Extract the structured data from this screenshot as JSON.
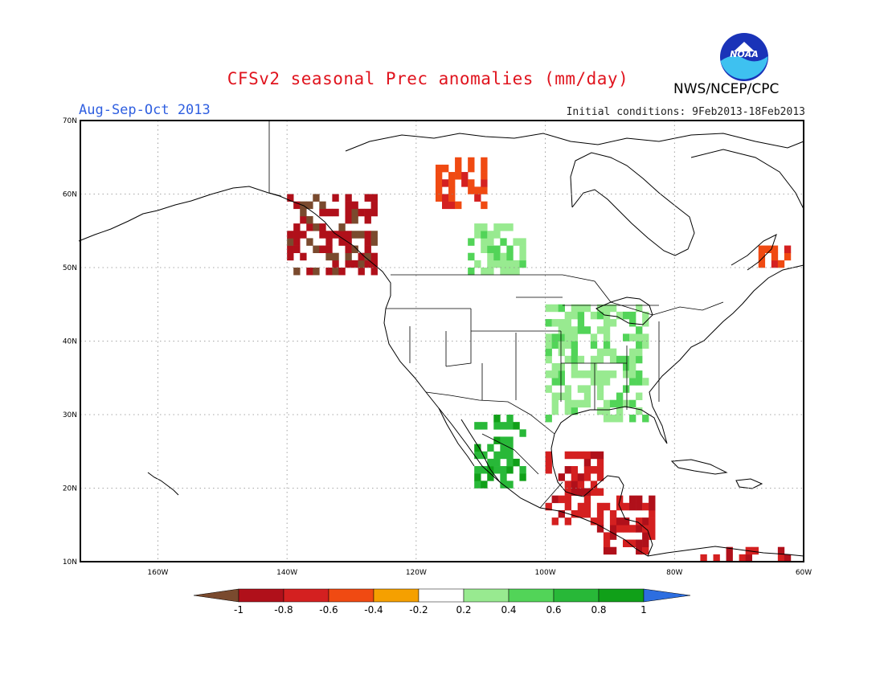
{
  "header": {
    "title": "CFSv2 seasonal Prec anomalies (mm/day)",
    "period": "Aug-Sep-Oct 2013",
    "initial_conditions": "Initial conditions: 9Feb2013-18Feb2013",
    "agency": "NWS/NCEP/CPC",
    "logo_text": "NOAA"
  },
  "map": {
    "lon_range": [
      -172,
      -60
    ],
    "lat_range": [
      10,
      70
    ],
    "lon_ticks": [
      {
        "lon": -160,
        "label": "160W"
      },
      {
        "lon": -140,
        "label": "140W"
      },
      {
        "lon": -120,
        "label": "120W"
      },
      {
        "lon": -100,
        "label": "100W"
      },
      {
        "lon": -80,
        "label": "80W"
      },
      {
        "lon": -60,
        "label": "60W"
      }
    ],
    "lat_ticks": [
      {
        "lat": 70,
        "label": "70N"
      },
      {
        "lat": 60,
        "label": "60N"
      },
      {
        "lat": 50,
        "label": "50N"
      },
      {
        "lat": 40,
        "label": "40N"
      },
      {
        "lat": 30,
        "label": "30N"
      },
      {
        "lat": 20,
        "label": "20N"
      },
      {
        "lat": 10,
        "label": "10N"
      }
    ]
  },
  "legend": {
    "labels": [
      "-1",
      "-0.8",
      "-0.6",
      "-0.4",
      "-0.2",
      "0.2",
      "0.4",
      "0.6",
      "0.8",
      "1"
    ],
    "colors": [
      "#7a4a2e",
      "#b0101a",
      "#d42020",
      "#f04a12",
      "#f5a000",
      "#ffffff",
      "#98ea90",
      "#52d458",
      "#28b838",
      "#10a018",
      "#2d6ee0"
    ]
  },
  "colors": {
    "title": "#e0141e",
    "period": "#2f5fe0",
    "logo_blue": "#1a33b8",
    "logo_cyan": "#3ec1f0"
  },
  "anomaly_regions": [
    {
      "name": "Alaska panhandle / British Columbia coast",
      "lon": [
        -140,
        -126
      ],
      "lat": [
        49,
        60
      ],
      "level": -0.8
    },
    {
      "name": "Northern Canada",
      "lon": [
        -117,
        -109
      ],
      "lat": [
        58,
        65
      ],
      "level": -0.4
    },
    {
      "name": "Western Canada interior",
      "lon": [
        -112,
        -103
      ],
      "lat": [
        49,
        56
      ],
      "level": 0.3
    },
    {
      "name": "Eastern Canada / Labrador",
      "lon": [
        -67,
        -62
      ],
      "lat": [
        50,
        53
      ],
      "level": -0.4
    },
    {
      "name": "US Midwest and South",
      "lon": [
        -100,
        -84
      ],
      "lat": [
        29,
        45
      ],
      "level": 0.3
    },
    {
      "name": "Western Mexico",
      "lon": [
        -111,
        -103
      ],
      "lat": [
        20,
        30
      ],
      "level": 0.6
    },
    {
      "name": "Southern Mexico",
      "lon": [
        -100,
        -91
      ],
      "lat": [
        15,
        25
      ],
      "level": -0.7
    },
    {
      "name": "Central America",
      "lon": [
        -92,
        -83
      ],
      "lat": [
        11,
        19
      ],
      "level": -0.7
    },
    {
      "name": "Northern South America",
      "lon": [
        -76,
        -62
      ],
      "lat": [
        10,
        12
      ],
      "level": -0.6
    }
  ]
}
